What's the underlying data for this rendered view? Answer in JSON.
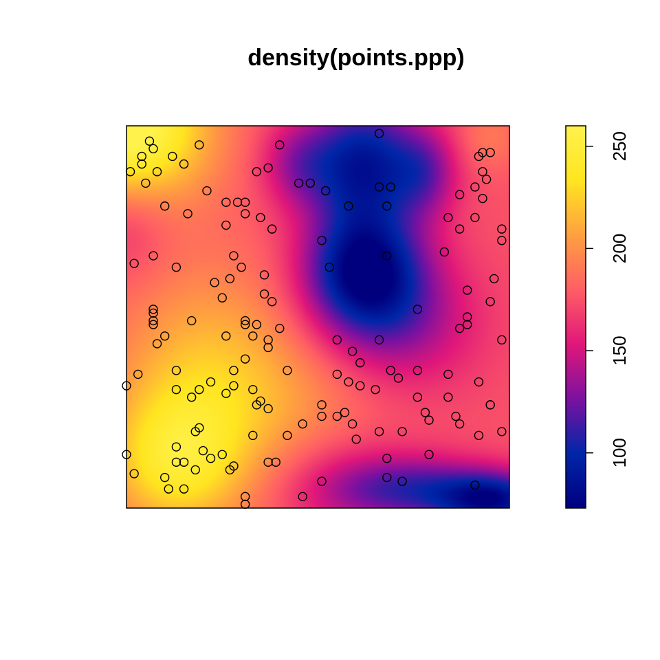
{
  "chart_data": {
    "type": "heatmap",
    "title": "density(points.ppp)",
    "colorbar": {
      "range": [
        73,
        260
      ],
      "ticks": [
        100,
        150,
        200,
        250
      ],
      "tick_labels": [
        "100",
        "150",
        "200",
        "250"
      ],
      "palette": [
        "#00007f",
        "#0026a8",
        "#7c11a0",
        "#e0177a",
        "#ff5e64",
        "#ffa040",
        "#ffe520",
        "#fff24d"
      ]
    },
    "density_field": {
      "base": 175,
      "components": [
        {
          "x": 0.0,
          "y": 1.0,
          "amp": 95,
          "sx": 0.15,
          "sy": 0.14
        },
        {
          "x": 0.22,
          "y": 0.3,
          "amp": 50,
          "sx": 0.18,
          "sy": 0.22
        },
        {
          "x": 0.12,
          "y": 0.12,
          "amp": 45,
          "sx": 0.12,
          "sy": 0.12
        },
        {
          "x": 0.62,
          "y": 0.62,
          "amp": -100,
          "sx": 0.11,
          "sy": 0.11
        },
        {
          "x": 0.62,
          "y": 0.9,
          "amp": -85,
          "sx": 0.1,
          "sy": 0.12
        },
        {
          "x": 0.78,
          "y": 0.88,
          "amp": -40,
          "sx": 0.06,
          "sy": 0.08
        },
        {
          "x": 0.45,
          "y": 0.9,
          "amp": -35,
          "sx": 0.07,
          "sy": 0.08
        },
        {
          "x": 0.72,
          "y": 0.48,
          "amp": -35,
          "sx": 0.14,
          "sy": 0.12
        },
        {
          "x": 0.96,
          "y": 0.02,
          "amp": -85,
          "sx": 0.1,
          "sy": 0.05
        },
        {
          "x": 0.75,
          "y": 0.05,
          "amp": -55,
          "sx": 0.15,
          "sy": 0.06
        },
        {
          "x": 0.55,
          "y": 0.05,
          "amp": -20,
          "sx": 0.15,
          "sy": 0.1
        },
        {
          "x": 0.0,
          "y": 0.75,
          "amp": -20,
          "sx": 0.08,
          "sy": 0.1
        },
        {
          "x": 0.95,
          "y": 0.97,
          "amp": 15,
          "sx": 0.06,
          "sy": 0.06
        },
        {
          "x": 0.5,
          "y": 0.28,
          "amp": 10,
          "sx": 0.15,
          "sy": 0.1
        }
      ]
    },
    "x_range": [
      0,
      1
    ],
    "y_range": [
      0,
      1
    ],
    "points": [
      [
        0.06,
        0.96
      ],
      [
        0.07,
        0.94
      ],
      [
        0.04,
        0.92
      ],
      [
        0.04,
        0.9
      ],
      [
        0.01,
        0.88
      ],
      [
        0.08,
        0.88
      ],
      [
        0.05,
        0.85
      ],
      [
        0.12,
        0.92
      ],
      [
        0.15,
        0.9
      ],
      [
        0.19,
        0.95
      ],
      [
        0.21,
        0.83
      ],
      [
        0.1,
        0.79
      ],
      [
        0.16,
        0.77
      ],
      [
        0.26,
        0.8
      ],
      [
        0.29,
        0.8
      ],
      [
        0.31,
        0.8
      ],
      [
        0.31,
        0.77
      ],
      [
        0.26,
        0.74
      ],
      [
        0.34,
        0.88
      ],
      [
        0.37,
        0.89
      ],
      [
        0.4,
        0.95
      ],
      [
        0.45,
        0.85
      ],
      [
        0.48,
        0.85
      ],
      [
        0.52,
        0.83
      ],
      [
        0.58,
        0.79
      ],
      [
        0.66,
        0.98
      ],
      [
        0.66,
        0.84
      ],
      [
        0.69,
        0.84
      ],
      [
        0.68,
        0.79
      ],
      [
        0.68,
        0.66
      ],
      [
        0.51,
        0.7
      ],
      [
        0.53,
        0.63
      ],
      [
        0.02,
        0.64
      ],
      [
        0.07,
        0.66
      ],
      [
        0.13,
        0.63
      ],
      [
        0.28,
        0.66
      ],
      [
        0.3,
        0.63
      ],
      [
        0.36,
        0.61
      ],
      [
        0.38,
        0.73
      ],
      [
        0.35,
        0.76
      ],
      [
        0.23,
        0.59
      ],
      [
        0.27,
        0.6
      ],
      [
        0.25,
        0.55
      ],
      [
        0.36,
        0.56
      ],
      [
        0.38,
        0.54
      ],
      [
        0.07,
        0.52
      ],
      [
        0.07,
        0.51
      ],
      [
        0.07,
        0.49
      ],
      [
        0.07,
        0.48
      ],
      [
        0.1,
        0.45
      ],
      [
        0.08,
        0.43
      ],
      [
        0.17,
        0.49
      ],
      [
        0.26,
        0.45
      ],
      [
        0.31,
        0.49
      ],
      [
        0.31,
        0.48
      ],
      [
        0.34,
        0.48
      ],
      [
        0.4,
        0.47
      ],
      [
        0.37,
        0.44
      ],
      [
        0.37,
        0.42
      ],
      [
        0.28,
        0.36
      ],
      [
        0.31,
        0.39
      ],
      [
        0.33,
        0.45
      ],
      [
        0.03,
        0.35
      ],
      [
        0.13,
        0.36
      ],
      [
        0.13,
        0.31
      ],
      [
        0.19,
        0.31
      ],
      [
        0.22,
        0.33
      ],
      [
        0.26,
        0.3
      ],
      [
        0.28,
        0.32
      ],
      [
        0.33,
        0.31
      ],
      [
        0.35,
        0.28
      ],
      [
        0.34,
        0.27
      ],
      [
        0.37,
        0.26
      ],
      [
        0.42,
        0.36
      ],
      [
        0.46,
        0.22
      ],
      [
        0.42,
        0.19
      ],
      [
        0.33,
        0.19
      ],
      [
        0.19,
        0.21
      ],
      [
        0.18,
        0.2
      ],
      [
        0.0,
        0.32
      ],
      [
        0.17,
        0.29
      ],
      [
        0.2,
        0.15
      ],
      [
        0.25,
        0.14
      ],
      [
        0.0,
        0.14
      ],
      [
        0.13,
        0.16
      ],
      [
        0.13,
        0.12
      ],
      [
        0.15,
        0.12
      ],
      [
        0.22,
        0.13
      ],
      [
        0.27,
        0.1
      ],
      [
        0.18,
        0.1
      ],
      [
        0.02,
        0.09
      ],
      [
        0.1,
        0.08
      ],
      [
        0.11,
        0.05
      ],
      [
        0.15,
        0.05
      ],
      [
        0.28,
        0.11
      ],
      [
        0.37,
        0.12
      ],
      [
        0.39,
        0.12
      ],
      [
        0.31,
        0.03
      ],
      [
        0.31,
        0.01
      ],
      [
        0.46,
        0.03
      ],
      [
        0.51,
        0.07
      ],
      [
        0.55,
        0.44
      ],
      [
        0.59,
        0.41
      ],
      [
        0.61,
        0.38
      ],
      [
        0.55,
        0.35
      ],
      [
        0.58,
        0.33
      ],
      [
        0.61,
        0.32
      ],
      [
        0.65,
        0.31
      ],
      [
        0.66,
        0.44
      ],
      [
        0.69,
        0.36
      ],
      [
        0.71,
        0.34
      ],
      [
        0.76,
        0.36
      ],
      [
        0.76,
        0.29
      ],
      [
        0.55,
        0.24
      ],
      [
        0.57,
        0.25
      ],
      [
        0.51,
        0.27
      ],
      [
        0.51,
        0.24
      ],
      [
        0.59,
        0.22
      ],
      [
        0.6,
        0.18
      ],
      [
        0.66,
        0.2
      ],
      [
        0.72,
        0.2
      ],
      [
        0.78,
        0.25
      ],
      [
        0.84,
        0.29
      ],
      [
        0.79,
        0.23
      ],
      [
        0.86,
        0.24
      ],
      [
        0.84,
        0.35
      ],
      [
        0.87,
        0.22
      ],
      [
        0.92,
        0.19
      ],
      [
        0.92,
        0.33
      ],
      [
        0.95,
        0.27
      ],
      [
        0.95,
        0.27
      ],
      [
        0.98,
        0.2
      ],
      [
        0.68,
        0.13
      ],
      [
        0.68,
        0.08
      ],
      [
        0.72,
        0.07
      ],
      [
        0.79,
        0.14
      ],
      [
        0.91,
        0.06
      ],
      [
        0.76,
        0.52
      ],
      [
        0.87,
        0.47
      ],
      [
        0.89,
        0.5
      ],
      [
        0.89,
        0.48
      ],
      [
        0.89,
        0.57
      ],
      [
        0.95,
        0.54
      ],
      [
        0.96,
        0.6
      ],
      [
        0.98,
        0.44
      ],
      [
        0.83,
        0.67
      ],
      [
        0.87,
        0.73
      ],
      [
        0.84,
        0.76
      ],
      [
        0.87,
        0.82
      ],
      [
        0.91,
        0.84
      ],
      [
        0.93,
        0.81
      ],
      [
        0.93,
        0.88
      ],
      [
        0.92,
        0.92
      ],
      [
        0.93,
        0.93
      ],
      [
        0.95,
        0.93
      ],
      [
        0.91,
        0.76
      ],
      [
        0.98,
        0.7
      ],
      [
        0.98,
        0.73
      ],
      [
        0.94,
        0.86
      ]
    ]
  }
}
